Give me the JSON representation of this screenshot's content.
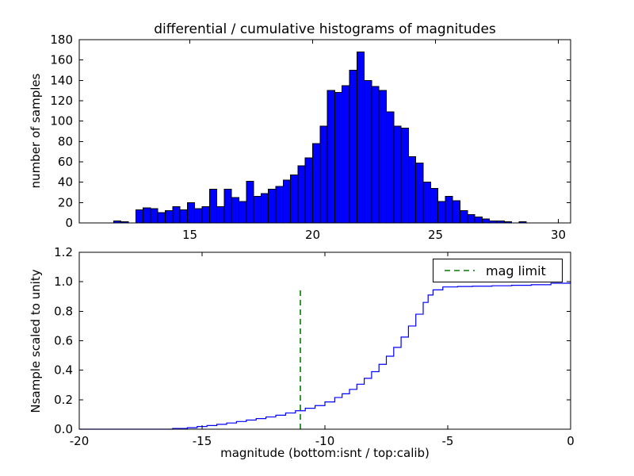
{
  "chart_data": [
    {
      "type": "bar",
      "subtype": "histogram",
      "title": "differential / cumulative histograms of magnitudes",
      "ylabel": "number of samples",
      "bin_start": 11.9,
      "bin_width": 0.3,
      "values": [
        2,
        1,
        0,
        13,
        15,
        14,
        10,
        12,
        16,
        13,
        20,
        14,
        16,
        33,
        16,
        33,
        25,
        21,
        41,
        26,
        29,
        33,
        36,
        42,
        47,
        56,
        64,
        78,
        95,
        130,
        128,
        135,
        150,
        168,
        140,
        134,
        130,
        109,
        95,
        93,
        65,
        59,
        40,
        34,
        21,
        26,
        22,
        12,
        8,
        6,
        4,
        2,
        2,
        1,
        0,
        1
      ],
      "xlim": [
        10.5,
        30.5
      ],
      "ylim": [
        0,
        180
      ],
      "xticks": [
        15,
        20,
        25,
        30
      ],
      "xtick_labels": [
        "15",
        "20",
        "25",
        "30"
      ],
      "yticks": [
        0,
        20,
        40,
        60,
        80,
        100,
        120,
        140,
        160,
        180
      ],
      "ytick_labels": [
        "0",
        "20",
        "40",
        "60",
        "80",
        "100",
        "120",
        "140",
        "160",
        "180"
      ],
      "bar_color": "#0000ff",
      "bar_edge_color": "#000000",
      "grid": false,
      "legend_position": "none"
    },
    {
      "type": "line",
      "subtype": "cumulative-step",
      "ylabel": "Nsample scaled to unity",
      "xlabel": "magnitude (bottom:isnt / top:calib)",
      "x": [
        -20,
        -16.2,
        -15.6,
        -15.2,
        -14.8,
        -14.4,
        -14.0,
        -13.6,
        -13.2,
        -12.8,
        -12.4,
        -12.0,
        -11.6,
        -11.2,
        -10.8,
        -10.4,
        -10.0,
        -9.6,
        -9.3,
        -9.0,
        -8.7,
        -8.4,
        -8.1,
        -7.8,
        -7.5,
        -7.2,
        -6.9,
        -6.6,
        -6.3,
        -6.0,
        -5.8,
        -5.6,
        -5.2,
        -4.6,
        -4.0,
        -3.2,
        -2.4,
        -1.6,
        -0.8,
        0
      ],
      "y": [
        0,
        0.005,
        0.01,
        0.018,
        0.025,
        0.033,
        0.042,
        0.052,
        0.062,
        0.072,
        0.083,
        0.095,
        0.11,
        0.125,
        0.142,
        0.16,
        0.185,
        0.215,
        0.24,
        0.27,
        0.305,
        0.345,
        0.39,
        0.44,
        0.495,
        0.555,
        0.625,
        0.7,
        0.78,
        0.86,
        0.91,
        0.945,
        0.965,
        0.968,
        0.97,
        0.973,
        0.976,
        0.98,
        0.99,
        1.0
      ],
      "xlim": [
        -20,
        0
      ],
      "ylim": [
        0,
        1.2
      ],
      "xticks": [
        -20,
        -15,
        -10,
        -5,
        0
      ],
      "xtick_labels": [
        "-20",
        "-15",
        "-10",
        "-5",
        "0"
      ],
      "yticks": [
        0.0,
        0.2,
        0.4,
        0.6,
        0.8,
        1.0,
        1.2
      ],
      "ytick_labels": [
        "0.0",
        "0.2",
        "0.4",
        "0.6",
        "0.8",
        "1.0",
        "1.2"
      ],
      "line_color": "#0000ff",
      "vline": {
        "x": -11,
        "y0": 0.0,
        "y1": 0.95,
        "color": "#008000",
        "style": "dashed",
        "label": "mag limit"
      },
      "legend": {
        "label": "mag limit",
        "position": "upper right"
      },
      "grid": false
    }
  ]
}
